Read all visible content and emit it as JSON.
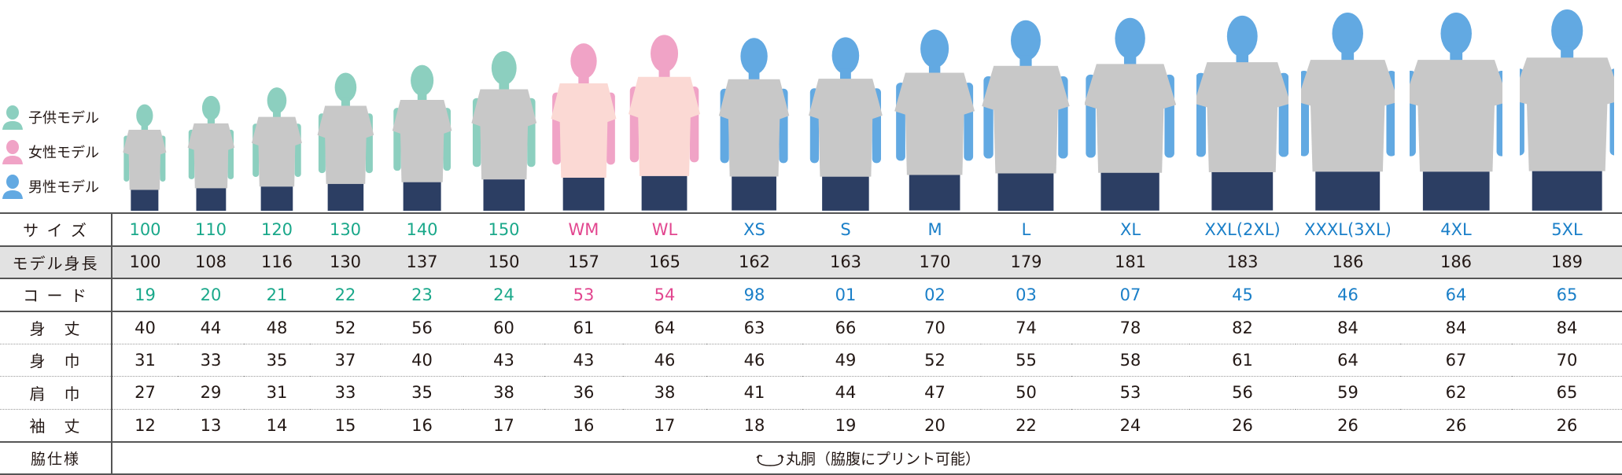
{
  "legend": [
    {
      "label": "子供モデル",
      "color": "#8ccfbf"
    },
    {
      "label": "女性モデル",
      "color": "#f0a3c6"
    },
    {
      "label": "男性モデル",
      "color": "#62a9e2"
    }
  ],
  "colors": {
    "kids": "#1aa88a",
    "women": "#e2468f",
    "men": "#1a7fc8",
    "shirt": "#c8c8c8",
    "jeans": "#2c3e63"
  },
  "row_labels": [
    "サ イ ズ",
    "モデル身長",
    "コ ー ド",
    "身　丈",
    "身　巾",
    "肩　巾",
    "袖　丈",
    "脇仕様"
  ],
  "columns": [
    {
      "size": "100",
      "group": "kids",
      "height": "100",
      "code": "19",
      "length": "40",
      "width": "31",
      "shoulder": "27",
      "sleeve": "12"
    },
    {
      "size": "110",
      "group": "kids",
      "height": "108",
      "code": "20",
      "length": "44",
      "width": "33",
      "shoulder": "29",
      "sleeve": "13"
    },
    {
      "size": "120",
      "group": "kids",
      "height": "116",
      "code": "21",
      "length": "48",
      "width": "35",
      "shoulder": "31",
      "sleeve": "14"
    },
    {
      "size": "130",
      "group": "kids",
      "height": "130",
      "code": "22",
      "length": "52",
      "width": "37",
      "shoulder": "33",
      "sleeve": "15"
    },
    {
      "size": "140",
      "group": "kids",
      "height": "137",
      "code": "23",
      "length": "56",
      "width": "40",
      "shoulder": "35",
      "sleeve": "16"
    },
    {
      "size": "150",
      "group": "kids",
      "height": "150",
      "code": "24",
      "length": "60",
      "width": "43",
      "shoulder": "38",
      "sleeve": "17"
    },
    {
      "size": "WM",
      "group": "women",
      "height": "157",
      "code": "53",
      "length": "61",
      "width": "43",
      "shoulder": "36",
      "sleeve": "16"
    },
    {
      "size": "WL",
      "group": "women",
      "height": "165",
      "code": "54",
      "length": "64",
      "width": "46",
      "shoulder": "38",
      "sleeve": "17"
    },
    {
      "size": "XS",
      "group": "men",
      "height": "162",
      "code": "98",
      "length": "63",
      "width": "46",
      "shoulder": "41",
      "sleeve": "18"
    },
    {
      "size": "S",
      "group": "men",
      "height": "163",
      "code": "01",
      "length": "66",
      "width": "49",
      "shoulder": "44",
      "sleeve": "19"
    },
    {
      "size": "M",
      "group": "men",
      "height": "170",
      "code": "02",
      "length": "70",
      "width": "52",
      "shoulder": "47",
      "sleeve": "20"
    },
    {
      "size": "L",
      "group": "men",
      "height": "179",
      "code": "03",
      "length": "74",
      "width": "55",
      "shoulder": "50",
      "sleeve": "22"
    },
    {
      "size": "XL",
      "group": "men",
      "height": "181",
      "code": "07",
      "length": "78",
      "width": "58",
      "shoulder": "53",
      "sleeve": "24"
    },
    {
      "size": "XXL(2XL)",
      "group": "men",
      "height": "183",
      "code": "45",
      "length": "82",
      "width": "61",
      "shoulder": "56",
      "sleeve": "26"
    },
    {
      "size": "XXXL(3XL)",
      "group": "men",
      "height": "186",
      "code": "46",
      "length": "84",
      "width": "64",
      "shoulder": "59",
      "sleeve": "26"
    },
    {
      "size": "4XL",
      "group": "men",
      "height": "186",
      "code": "64",
      "length": "84",
      "width": "67",
      "shoulder": "62",
      "sleeve": "26"
    },
    {
      "size": "5XL",
      "group": "men",
      "height": "189",
      "code": "65",
      "length": "84",
      "width": "70",
      "shoulder": "65",
      "sleeve": "26"
    }
  ],
  "side_spec": "丸胴（脇腹にプリント可能）",
  "side_icon": "round-body-arrows-icon"
}
